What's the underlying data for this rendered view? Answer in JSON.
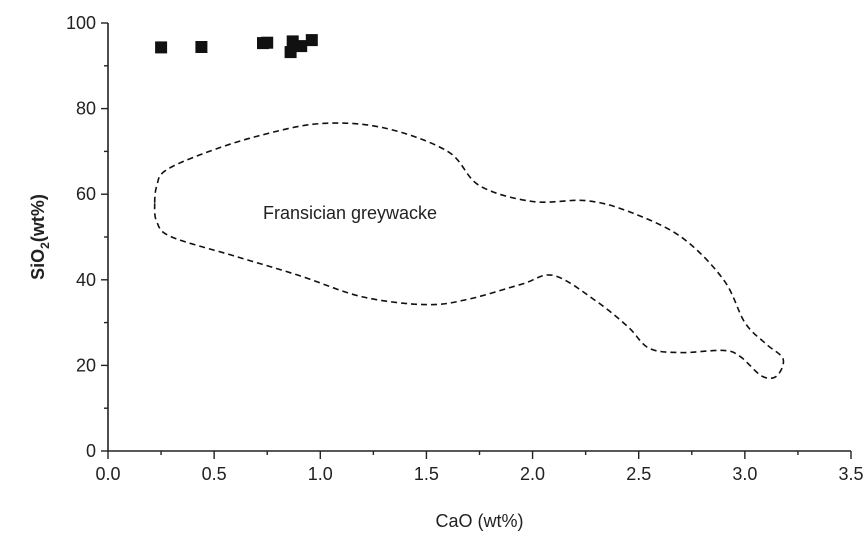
{
  "chart_data": {
    "type": "scatter",
    "xlabel": "CaO (wt%)",
    "ylabel": {
      "prefix": "SiO",
      "subscript": "2",
      "suffix": "(wt%)"
    },
    "xlim": [
      0.0,
      3.5
    ],
    "ylim": [
      0,
      100
    ],
    "x_ticks": [
      "0.0",
      "0.5",
      "1.0",
      "1.5",
      "2.0",
      "2.5",
      "3.0",
      "3.5"
    ],
    "y_ticks": [
      "0",
      "20",
      "40",
      "60",
      "80",
      "100"
    ],
    "grid": false,
    "marker": "square",
    "series": [
      {
        "points": [
          {
            "x": 0.25,
            "y": 94.3
          },
          {
            "x": 0.44,
            "y": 94.4
          },
          {
            "x": 0.73,
            "y": 95.3
          },
          {
            "x": 0.75,
            "y": 95.4
          },
          {
            "x": 0.86,
            "y": 93.2
          },
          {
            "x": 0.87,
            "y": 95.7
          },
          {
            "x": 0.91,
            "y": 94.6
          },
          {
            "x": 0.96,
            "y": 96.0
          }
        ]
      }
    ],
    "regions": [
      {
        "label": "Fransician greywacke",
        "style": "dashed",
        "boundary": [
          [
            0.22,
            58
          ],
          [
            0.23,
            62
          ],
          [
            0.27,
            65.5
          ],
          [
            0.45,
            69.5
          ],
          [
            0.7,
            73.5
          ],
          [
            1.0,
            76.5
          ],
          [
            1.3,
            75.5
          ],
          [
            1.6,
            70
          ],
          [
            1.75,
            62
          ],
          [
            2.0,
            58.3
          ],
          [
            2.25,
            58.5
          ],
          [
            2.45,
            56
          ],
          [
            2.7,
            50
          ],
          [
            2.9,
            40
          ],
          [
            3.0,
            30
          ],
          [
            3.1,
            25
          ],
          [
            3.18,
            21.5
          ],
          [
            3.15,
            17.5
          ],
          [
            3.08,
            17.5
          ],
          [
            2.98,
            22
          ],
          [
            2.9,
            23.5
          ],
          [
            2.7,
            23
          ],
          [
            2.55,
            24
          ],
          [
            2.45,
            29
          ],
          [
            2.3,
            35
          ],
          [
            2.1,
            41
          ],
          [
            1.95,
            39
          ],
          [
            1.7,
            35.5
          ],
          [
            1.5,
            34.2
          ],
          [
            1.2,
            36
          ],
          [
            0.9,
            41
          ],
          [
            0.6,
            45.5
          ],
          [
            0.3,
            50
          ],
          [
            0.23,
            53.5
          ],
          [
            0.22,
            58
          ]
        ]
      }
    ]
  }
}
